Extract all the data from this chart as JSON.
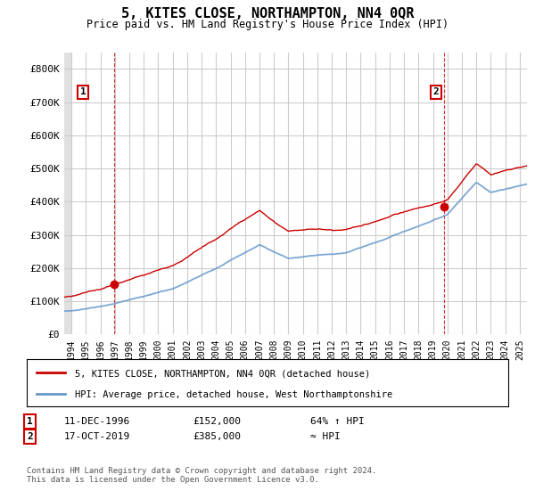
{
  "title": "5, KITES CLOSE, NORTHAMPTON, NN4 0QR",
  "subtitle": "Price paid vs. HM Land Registry's House Price Index (HPI)",
  "legend_line1": "5, KITES CLOSE, NORTHAMPTON, NN4 0QR (detached house)",
  "legend_line2": "HPI: Average price, detached house, West Northamptonshire",
  "annotation1_label": "1",
  "annotation1_date": "11-DEC-1996",
  "annotation1_price": "£152,000",
  "annotation1_hpi": "64% ↑ HPI",
  "annotation2_label": "2",
  "annotation2_date": "17-OCT-2019",
  "annotation2_price": "£385,000",
  "annotation2_hpi": "≈ HPI",
  "footer": "Contains HM Land Registry data © Crown copyright and database right 2024.\nThis data is licensed under the Open Government Licence v3.0.",
  "sale1_x": 1996.95,
  "sale1_y": 152000,
  "sale2_x": 2019.79,
  "sale2_y": 385000,
  "hpi_color": "#6699cc",
  "price_color": "#cc0000",
  "ylim": [
    0,
    850000
  ],
  "xlim_start": 1993.5,
  "xlim_end": 2025.5,
  "yticks": [
    0,
    100000,
    200000,
    300000,
    400000,
    500000,
    600000,
    700000,
    800000
  ],
  "ytick_labels": [
    "£0",
    "£100K",
    "£200K",
    "£300K",
    "£400K",
    "£500K",
    "£600K",
    "£700K",
    "£800K"
  ],
  "xticks": [
    1994,
    1995,
    1996,
    1997,
    1998,
    1999,
    2000,
    2001,
    2002,
    2003,
    2004,
    2005,
    2006,
    2007,
    2008,
    2009,
    2010,
    2011,
    2012,
    2013,
    2014,
    2015,
    2016,
    2017,
    2018,
    2019,
    2020,
    2021,
    2022,
    2023,
    2024,
    2025
  ],
  "grid_color": "#cccccc",
  "hatch_color": "#e0e0e0"
}
